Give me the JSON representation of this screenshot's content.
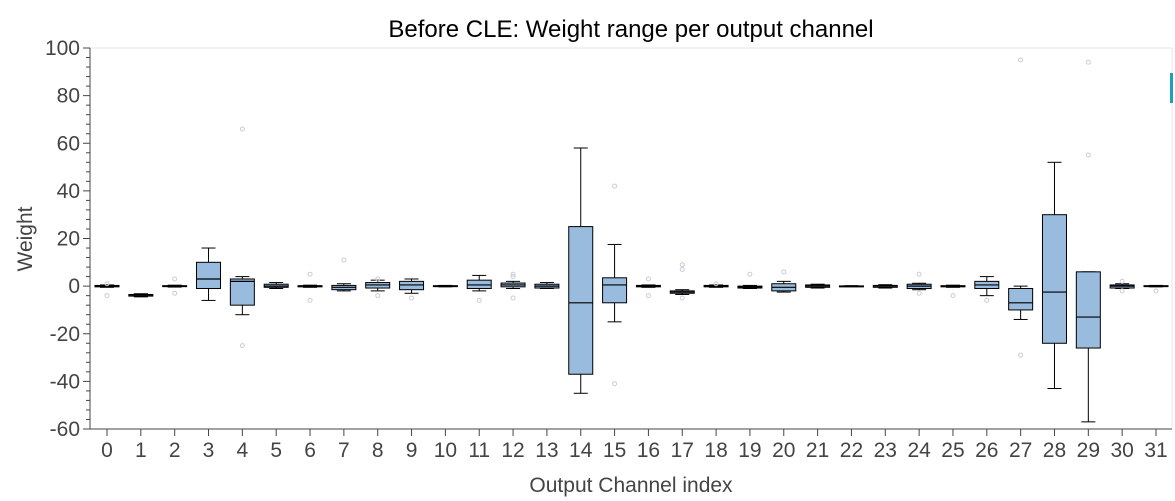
{
  "chart_data": {
    "type": "boxplot",
    "title": "Before CLE: Weight range per output channel",
    "xlabel": "Output Channel index",
    "ylabel": "Weight",
    "ylim": [
      -60,
      100
    ],
    "yticks": [
      -60,
      -40,
      -20,
      0,
      20,
      40,
      60,
      80,
      100
    ],
    "grid": false,
    "categories": [
      "0",
      "1",
      "2",
      "3",
      "4",
      "5",
      "6",
      "7",
      "8",
      "9",
      "10",
      "11",
      "12",
      "13",
      "14",
      "15",
      "16",
      "17",
      "18",
      "19",
      "20",
      "21",
      "22",
      "23",
      "24",
      "25",
      "26",
      "27",
      "28",
      "29",
      "30",
      "31"
    ],
    "boxes": [
      {
        "min": -0.5,
        "q1": -0.3,
        "median": 0,
        "q3": 0.3,
        "max": 0.5,
        "outliers": [
          -4,
          1
        ]
      },
      {
        "min": -4.5,
        "q1": -4.2,
        "median": -3.8,
        "q3": -3.5,
        "max": -3.2,
        "outliers": []
      },
      {
        "min": -0.4,
        "q1": -0.2,
        "median": 0,
        "q3": 0.2,
        "max": 0.4,
        "outliers": [
          3,
          -3
        ]
      },
      {
        "min": -6,
        "q1": -1,
        "median": 3,
        "q3": 10,
        "max": 16,
        "outliers": []
      },
      {
        "min": -12,
        "q1": -8,
        "median": 2,
        "q3": 3,
        "max": 4,
        "outliers": [
          66,
          -25
        ]
      },
      {
        "min": -1,
        "q1": -0.5,
        "median": 0,
        "q3": 0.8,
        "max": 1.5,
        "outliers": []
      },
      {
        "min": -0.5,
        "q1": -0.3,
        "median": 0,
        "q3": 0.2,
        "max": 0.4,
        "outliers": [
          5,
          -6
        ]
      },
      {
        "min": -2,
        "q1": -1.5,
        "median": -0.5,
        "q3": 0.3,
        "max": 1,
        "outliers": [
          11
        ]
      },
      {
        "min": -2,
        "q1": -0.8,
        "median": 0.5,
        "q3": 1.5,
        "max": 2.5,
        "outliers": [
          3,
          -4
        ]
      },
      {
        "min": -3,
        "q1": -1.5,
        "median": 0.5,
        "q3": 2,
        "max": 3,
        "outliers": [
          -5
        ]
      },
      {
        "min": -0.3,
        "q1": -0.2,
        "median": 0,
        "q3": 0.2,
        "max": 0.3,
        "outliers": []
      },
      {
        "min": -2,
        "q1": -1,
        "median": 0.5,
        "q3": 2.5,
        "max": 4.5,
        "outliers": [
          -6
        ]
      },
      {
        "min": -1,
        "q1": -0.3,
        "median": 0.5,
        "q3": 1.3,
        "max": 2,
        "outliers": [
          4,
          5,
          -5
        ]
      },
      {
        "min": -1,
        "q1": -0.8,
        "median": 0,
        "q3": 0.8,
        "max": 1.5,
        "outliers": []
      },
      {
        "min": -45,
        "q1": -37,
        "median": -7,
        "q3": 25,
        "max": 58,
        "outliers": []
      },
      {
        "min": -15,
        "q1": -7,
        "median": 0.5,
        "q3": 3.5,
        "max": 17.5,
        "outliers": [
          42,
          -41
        ]
      },
      {
        "min": -0.5,
        "q1": -0.3,
        "median": 0,
        "q3": 0.3,
        "max": 0.5,
        "outliers": [
          3,
          -4
        ]
      },
      {
        "min": -3.5,
        "q1": -3,
        "median": -2.5,
        "q3": -2,
        "max": -1.5,
        "outliers": [
          9,
          7,
          -5
        ]
      },
      {
        "min": -0.5,
        "q1": -0.3,
        "median": 0,
        "q3": 0.3,
        "max": 0.5,
        "outliers": [
          1
        ]
      },
      {
        "min": -1,
        "q1": -0.8,
        "median": -0.3,
        "q3": 0,
        "max": 0.3,
        "outliers": [
          5
        ]
      },
      {
        "min": -2.5,
        "q1": -2,
        "median": -0.5,
        "q3": 1,
        "max": 2,
        "outliers": [
          6
        ]
      },
      {
        "min": -0.8,
        "q1": -0.5,
        "median": 0,
        "q3": 0.5,
        "max": 0.8,
        "outliers": []
      },
      {
        "min": -0.2,
        "q1": -0.1,
        "median": 0,
        "q3": 0.1,
        "max": 0.2,
        "outliers": []
      },
      {
        "min": -0.8,
        "q1": -0.5,
        "median": 0,
        "q3": 0.3,
        "max": 0.6,
        "outliers": []
      },
      {
        "min": -1.5,
        "q1": -1,
        "median": 0,
        "q3": 0.8,
        "max": 1.2,
        "outliers": [
          5,
          -3
        ]
      },
      {
        "min": -0.5,
        "q1": -0.3,
        "median": 0,
        "q3": 0.2,
        "max": 0.4,
        "outliers": [
          -4
        ]
      },
      {
        "min": -4,
        "q1": -1,
        "median": 0.5,
        "q3": 2,
        "max": 4,
        "outliers": [
          -6
        ]
      },
      {
        "min": -14,
        "q1": -10,
        "median": -7,
        "q3": -1,
        "max": 0,
        "outliers": [
          95,
          -29
        ]
      },
      {
        "min": -43,
        "q1": -24,
        "median": -2.5,
        "q3": 30,
        "max": 52,
        "outliers": []
      },
      {
        "min": -57,
        "q1": -26,
        "median": -13,
        "q3": 6,
        "max": 6,
        "outliers": [
          94,
          55
        ]
      },
      {
        "min": -1,
        "q1": -0.8,
        "median": 0,
        "q3": 0.5,
        "max": 1,
        "outliers": [
          2,
          -2
        ]
      },
      {
        "min": -0.3,
        "q1": -0.2,
        "median": 0,
        "q3": 0.2,
        "max": 0.3,
        "outliers": [
          -2
        ]
      }
    ],
    "colors": {
      "box_fill": "#99bbdd",
      "box_stroke": "#000000",
      "outlier": "#c8ccd8",
      "axis": "#444444",
      "edge_marker": "#1f9ec4"
    }
  }
}
